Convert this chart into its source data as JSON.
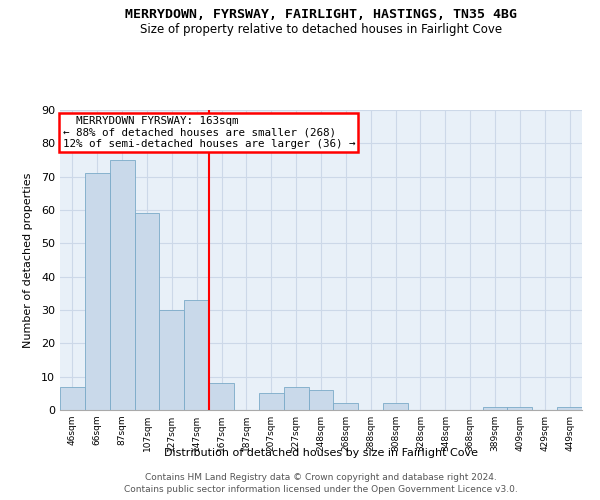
{
  "title": "MERRYDOWN, FYRSWAY, FAIRLIGHT, HASTINGS, TN35 4BG",
  "subtitle": "Size of property relative to detached houses in Fairlight Cove",
  "xlabel": "Distribution of detached houses by size in Fairlight Cove",
  "ylabel": "Number of detached properties",
  "footer_line1": "Contains HM Land Registry data © Crown copyright and database right 2024.",
  "footer_line2": "Contains public sector information licensed under the Open Government Licence v3.0.",
  "annotation_line1": "  MERRYDOWN FYRSWAY: 163sqm  ",
  "annotation_line2": "← 88% of detached houses are smaller (268)",
  "annotation_line3": "12% of semi-detached houses are larger (36) →",
  "bar_color": "#c9d9ea",
  "bar_edge_color": "#7aaac8",
  "vline_color": "red",
  "grid_color": "#ccd8e8",
  "bg_color": "#e8f0f8",
  "categories": [
    "46sqm",
    "66sqm",
    "87sqm",
    "107sqm",
    "127sqm",
    "147sqm",
    "167sqm",
    "187sqm",
    "207sqm",
    "227sqm",
    "248sqm",
    "268sqm",
    "288sqm",
    "308sqm",
    "328sqm",
    "348sqm",
    "368sqm",
    "389sqm",
    "409sqm",
    "429sqm",
    "449sqm"
  ],
  "values": [
    7,
    71,
    75,
    59,
    30,
    33,
    8,
    0,
    5,
    7,
    6,
    2,
    0,
    2,
    0,
    0,
    0,
    1,
    1,
    0,
    1
  ],
  "ylim": [
    0,
    90
  ],
  "yticks": [
    0,
    10,
    20,
    30,
    40,
    50,
    60,
    70,
    80,
    90
  ],
  "vline_index": 6
}
